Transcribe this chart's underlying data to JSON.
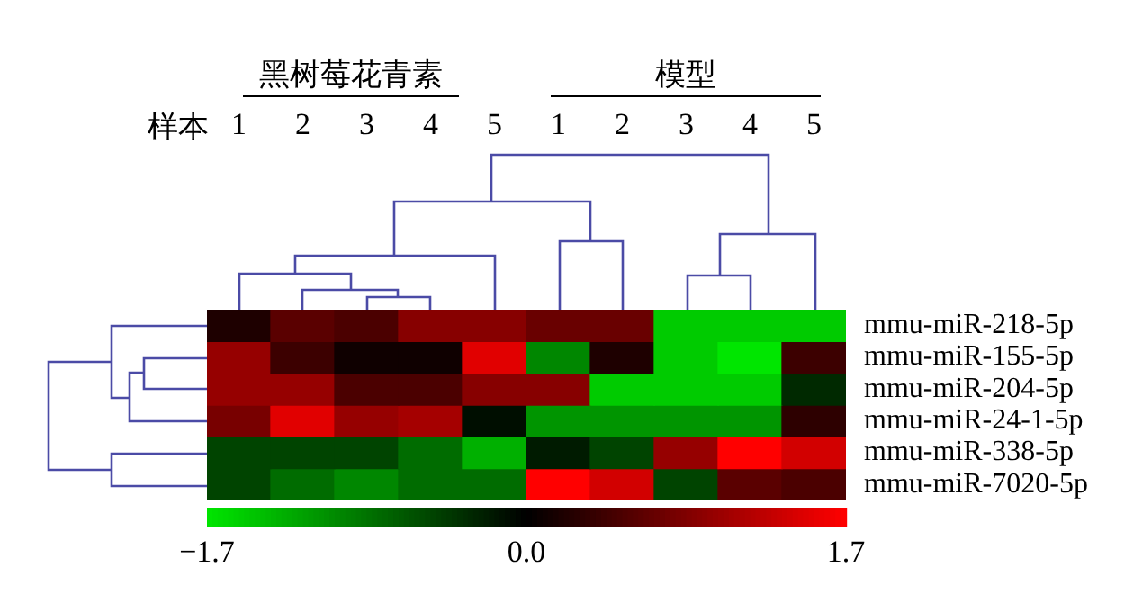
{
  "chart_data": {
    "type": "heatmap",
    "xlabel": "样本",
    "annotations": [
      "黑树莓花青素",
      "模型"
    ],
    "categories": [
      "1",
      "2",
      "3",
      "4",
      "5",
      "1",
      "2",
      "3",
      "4",
      "5"
    ],
    "y_categories": [
      "mmu-miR-218-5p",
      "mmu-miR-155-5p",
      "mmu-miR-204-5p",
      "mmu-miR-24-1-5p",
      "mmu-miR-338-5p",
      "mmu-miR-7020-5p"
    ],
    "cells": [
      [
        0.2,
        0.6,
        0.5,
        0.9,
        0.9,
        0.7,
        0.7,
        -1.5,
        -1.5,
        -1.5
      ],
      [
        1.0,
        0.4,
        0.1,
        0.1,
        1.5,
        -1.0,
        0.2,
        -1.5,
        -1.7,
        0.4
      ],
      [
        1.0,
        1.0,
        0.5,
        0.5,
        0.9,
        0.9,
        -1.5,
        -1.5,
        -1.5,
        -0.3
      ],
      [
        0.8,
        1.5,
        1.0,
        1.1,
        -0.1,
        -1.1,
        -1.1,
        -1.1,
        -1.1,
        0.3
      ],
      [
        -0.5,
        -0.5,
        -0.5,
        -0.8,
        -1.3,
        -0.2,
        -0.5,
        1.0,
        1.7,
        1.4
      ],
      [
        -0.5,
        -0.8,
        -1.0,
        -0.8,
        -0.8,
        1.7,
        1.4,
        -0.5,
        0.6,
        0.5
      ]
    ],
    "clim": [
      -1.7,
      1.7
    ],
    "cticks": [
      {
        "value": -1.7,
        "label": "−1.7"
      },
      {
        "value": 0,
        "label": "0.0"
      },
      1.7
    ]
  }
}
